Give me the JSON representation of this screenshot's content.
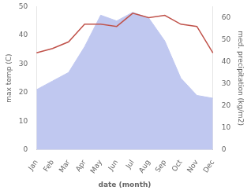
{
  "chart_data": {
    "type": "line",
    "xlabel": "date (month)",
    "ylabel": "max temp (C)",
    "y2label": "med. precipitation (kg/m2)",
    "categories": [
      "Jan",
      "Feb",
      "Mar",
      "Apr",
      "May",
      "Jun",
      "Jul",
      "Aug",
      "Sep",
      "Oct",
      "Nov",
      "Dec"
    ],
    "series": [
      {
        "type": "area",
        "color": "#c0c8f0",
        "values": [
          21,
          24,
          27,
          36,
          47,
          45,
          48,
          46,
          38,
          25,
          19,
          18
        ]
      },
      {
        "type": "line",
        "color": "#c0524a",
        "axis": "y2",
        "values": [
          44,
          46,
          49,
          57,
          57,
          56,
          62,
          60,
          61,
          57,
          56,
          44
        ]
      }
    ],
    "ylim": [
      0,
      50
    ],
    "yticks": [
      0,
      10,
      20,
      30,
      40,
      50
    ],
    "y2lim": [
      0,
      65
    ],
    "y2ticks": [
      0,
      10,
      20,
      30,
      40,
      50,
      60
    ],
    "grid": false
  }
}
